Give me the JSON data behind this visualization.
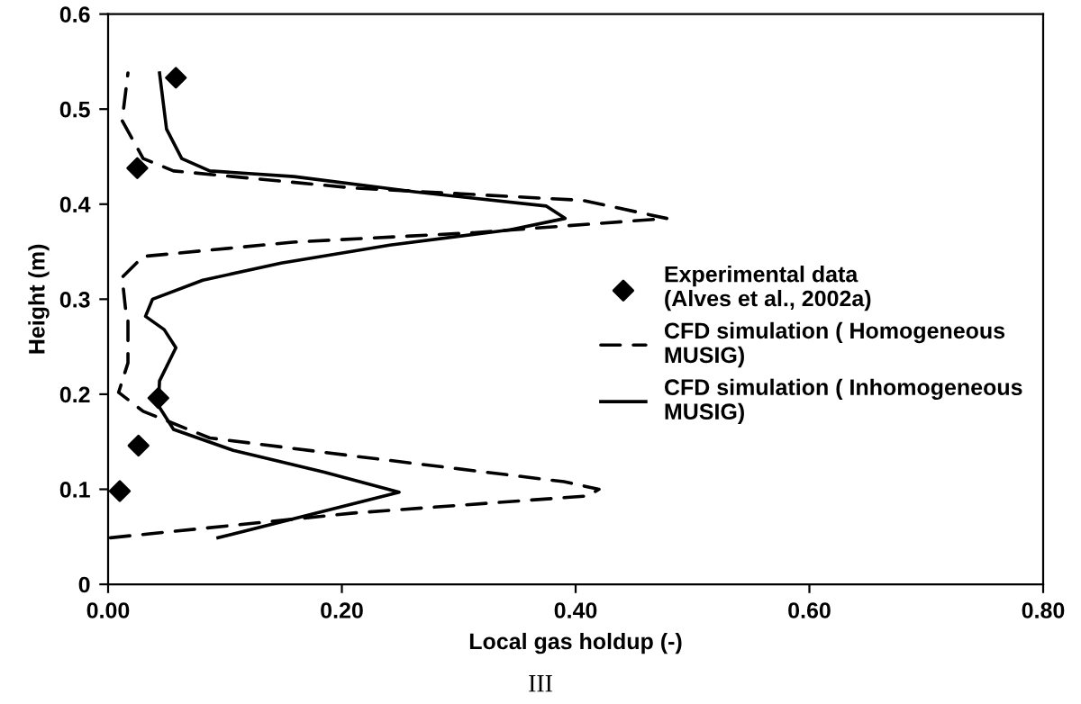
{
  "chart_data": {
    "type": "line",
    "xlabel": "Local gas holdup (-)",
    "ylabel": "Height (m)",
    "xlim": [
      0,
      0.8
    ],
    "xticks": [
      {
        "value": 0,
        "label": "0.00"
      },
      {
        "value": 0.2,
        "label": "0.20"
      },
      {
        "value": 0.4,
        "label": "0.40"
      },
      {
        "value": 0.6,
        "label": "0.60"
      },
      {
        "value": 0.8,
        "label": "0.80"
      }
    ],
    "ylim": [
      0,
      0.6
    ],
    "yticks": [
      0,
      0.1,
      0.2,
      0.3,
      0.4,
      0.5,
      0.6
    ],
    "grid": false,
    "legend": "right",
    "annotations": [
      "III"
    ],
    "series": [
      {
        "name": "Experimental data\n(Alves et al., 2002a)",
        "type": "scatter",
        "marker": "diamond",
        "color": "#000000",
        "x": [
          0.01,
          0.026,
          0.043,
          0.025,
          0.058
        ],
        "values": [
          0.098,
          0.146,
          0.196,
          0.438,
          0.533
        ]
      },
      {
        "name": "CFD simulation ( Homogeneous\nMUSIG)",
        "line_style": "dashed",
        "marker": "none",
        "color": "#000000",
        "x": [
          0.002,
          0.21,
          0.41,
          0.42,
          0.39,
          0.21,
          0.087,
          0.03,
          0.009,
          0.017,
          0.017,
          0.015,
          0.012,
          0.03,
          0.158,
          0.313,
          0.478,
          0.406,
          0.21,
          0.107,
          0.056,
          0.03,
          0.012,
          0.017
        ],
        "values": [
          0.049,
          0.075,
          0.093,
          0.1,
          0.108,
          0.135,
          0.154,
          0.182,
          0.202,
          0.233,
          0.277,
          0.289,
          0.323,
          0.345,
          0.36,
          0.37,
          0.385,
          0.404,
          0.417,
          0.429,
          0.435,
          0.448,
          0.488,
          0.538
        ]
      },
      {
        "name": "CFD simulation ( Inhomogeneous\nMUSIG)",
        "line_style": "solid",
        "marker": "none",
        "color": "#000000",
        "x": [
          0.094,
          0.249,
          0.185,
          0.107,
          0.056,
          0.043,
          0.044,
          0.058,
          0.048,
          0.032,
          0.038,
          0.081,
          0.148,
          0.241,
          0.344,
          0.391,
          0.375,
          0.262,
          0.159,
          0.087,
          0.063,
          0.05,
          0.044
        ],
        "values": [
          0.049,
          0.097,
          0.118,
          0.141,
          0.163,
          0.188,
          0.214,
          0.249,
          0.268,
          0.282,
          0.3,
          0.32,
          0.338,
          0.357,
          0.373,
          0.385,
          0.398,
          0.413,
          0.429,
          0.435,
          0.448,
          0.479,
          0.538
        ]
      }
    ]
  }
}
